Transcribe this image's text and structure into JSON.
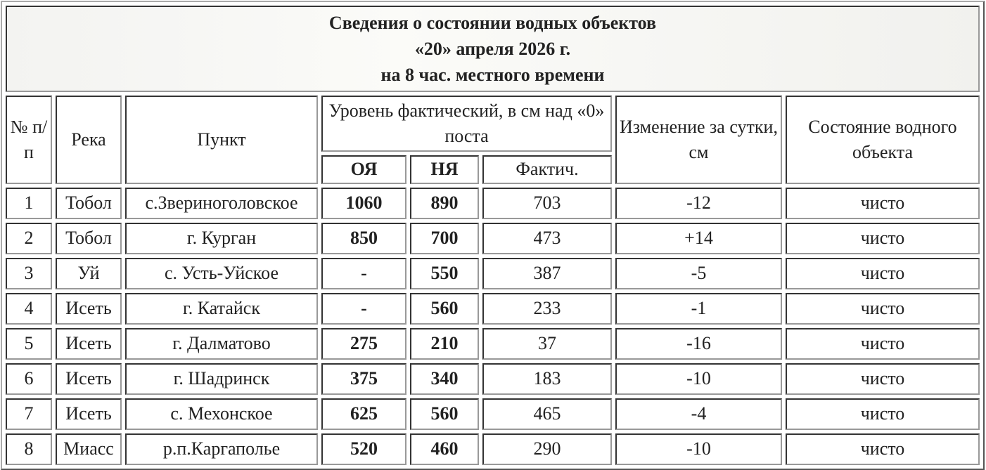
{
  "title": {
    "line1": "Сведения о состоянии водных объектов",
    "line2": "«20» апреля 2026 г.",
    "line3": "на 8 час. местного времени"
  },
  "headers": {
    "num": "№ п/п",
    "river": "Река",
    "point": "Пункт",
    "level": "Уровень фактический, в см над «0» поста",
    "oya": "ОЯ",
    "nya": "НЯ",
    "fact": "Фактич.",
    "change": "Изменение за сутки, см",
    "state": "Состояние водного объекта"
  },
  "rows": [
    {
      "n": "1",
      "river": "Тобол",
      "point": "с.Звериноголовское",
      "oya": "1060",
      "nya": "890",
      "fact": "703",
      "change": "-12",
      "state": "чисто"
    },
    {
      "n": "2",
      "river": "Тобол",
      "point": "г. Курган",
      "oya": "850",
      "nya": "700",
      "fact": "473",
      "change": "+14",
      "state": "чисто"
    },
    {
      "n": "3",
      "river": "Уй",
      "point": "с. Усть-Уйское",
      "oya": "-",
      "nya": "550",
      "fact": "387",
      "change": "-5",
      "state": "чисто"
    },
    {
      "n": "4",
      "river": "Исеть",
      "point": "г. Катайск",
      "oya": "-",
      "nya": "560",
      "fact": "233",
      "change": "-1",
      "state": "чисто"
    },
    {
      "n": "5",
      "river": "Исеть",
      "point": "г. Далматово",
      "oya": "275",
      "nya": "210",
      "fact": "37",
      "change": "-16",
      "state": "чисто"
    },
    {
      "n": "6",
      "river": "Исеть",
      "point": "г. Шадринск",
      "oya": "375",
      "nya": "340",
      "fact": "183",
      "change": "-10",
      "state": "чисто"
    },
    {
      "n": "7",
      "river": "Исеть",
      "point": "с. Мехонское",
      "oya": "625",
      "nya": "560",
      "fact": "465",
      "change": "-4",
      "state": "чисто"
    },
    {
      "n": "8",
      "river": "Миасс",
      "point": "р.п.Каргаполье",
      "oya": "520",
      "nya": "460",
      "fact": "290",
      "change": "-10",
      "state": "чисто"
    }
  ]
}
